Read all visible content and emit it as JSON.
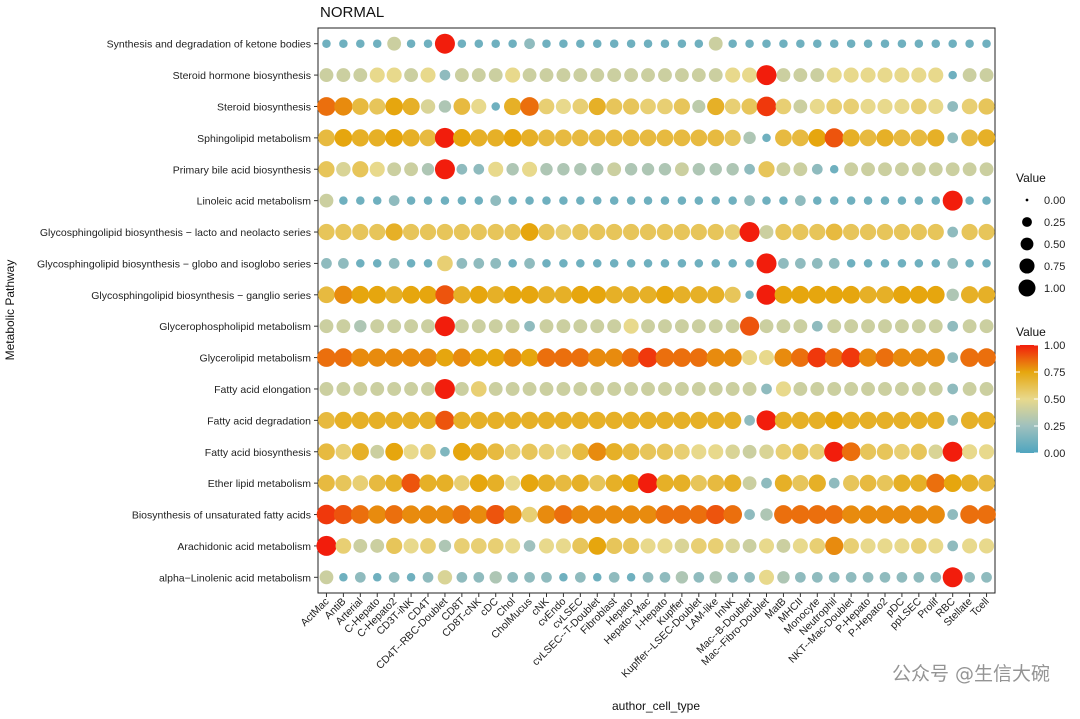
{
  "chart_data": {
    "type": "dotplot",
    "title": "NORMAL",
    "xlabel": "author_cell_type",
    "ylabel": "Metabolic Pathway",
    "categories": [
      "ActMac",
      "AntiB",
      "Arterial",
      "C-Hepato",
      "C-Hepato2",
      "CD3T-iNK",
      "CD4T",
      "CD4T--RBC-Doublet",
      "CD8T",
      "CD8T-cNK",
      "cDC",
      "Chol",
      "CholMucus",
      "cNK",
      "cvEndo",
      "cvLSEC",
      "cvLSEC--T-Doublet",
      "Fibroblast",
      "Hepato",
      "Hepato--Mac",
      "I-Hepato",
      "Kupffer",
      "Kupffer--LSEC-Doublet",
      "LAM-like",
      "InNK",
      "Mac--B-Doublet",
      "Mac--Fibro-Doublet",
      "MatB",
      "MHCII",
      "Monocyte",
      "Neutrophil",
      "NKT--Mac-Doublet",
      "P-Hepato",
      "P-Hepato2",
      "pDC",
      "ppLSEC",
      "Prolif",
      "RBC",
      "Stellate",
      "Tcell"
    ],
    "pathways": [
      "Synthesis and degradation of ketone bodies",
      "Steroid hormone biosynthesis",
      "Steroid biosynthesis",
      "Sphingolipid metabolism",
      "Primary bile acid biosynthesis",
      "Linoleic acid metabolism",
      "Glycosphingolipid biosynthesis − lacto and neolacto series",
      "Glycosphingolipid biosynthesis − globo and isoglobo series",
      "Glycosphingolipid biosynthesis − ganglio series",
      "Glycerophospholipid metabolism",
      "Glycerolipid metabolism",
      "Fatty acid elongation",
      "Fatty acid degradation",
      "Fatty acid biosynthesis",
      "Ether lipid metabolism",
      "Biosynthesis of unsaturated fatty acids",
      "Arachidonic acid metabolism",
      "alpha−Linolenic acid metabolism"
    ],
    "values": [
      [
        0.1,
        0.1,
        0.1,
        0.1,
        0.4,
        0.1,
        0.1,
        1.0,
        0.1,
        0.1,
        0.1,
        0.1,
        0.2,
        0.1,
        0.1,
        0.1,
        0.1,
        0.1,
        0.1,
        0.1,
        0.1,
        0.1,
        0.1,
        0.4,
        0.1,
        0.1,
        0.1,
        0.1,
        0.1,
        0.1,
        0.1,
        0.1,
        0.1,
        0.1,
        0.1,
        0.1,
        0.1,
        0.1,
        0.1,
        0.1
      ],
      [
        0.4,
        0.4,
        0.4,
        0.5,
        0.5,
        0.4,
        0.5,
        0.2,
        0.4,
        0.4,
        0.4,
        0.5,
        0.4,
        0.4,
        0.4,
        0.4,
        0.4,
        0.4,
        0.4,
        0.4,
        0.4,
        0.4,
        0.4,
        0.4,
        0.5,
        0.5,
        1.0,
        0.4,
        0.4,
        0.4,
        0.5,
        0.5,
        0.5,
        0.5,
        0.5,
        0.5,
        0.5,
        0.1,
        0.4,
        0.4
      ],
      [
        0.85,
        0.8,
        0.65,
        0.6,
        0.75,
        0.7,
        0.45,
        0.3,
        0.65,
        0.5,
        0.1,
        0.7,
        0.85,
        0.55,
        0.5,
        0.55,
        0.7,
        0.6,
        0.6,
        0.55,
        0.55,
        0.6,
        0.35,
        0.7,
        0.55,
        0.6,
        0.95,
        0.55,
        0.4,
        0.5,
        0.55,
        0.55,
        0.5,
        0.5,
        0.5,
        0.55,
        0.5,
        0.2,
        0.55,
        0.6
      ],
      [
        0.65,
        0.75,
        0.7,
        0.7,
        0.75,
        0.7,
        0.65,
        1.0,
        0.75,
        0.7,
        0.7,
        0.75,
        0.7,
        0.65,
        0.65,
        0.65,
        0.65,
        0.65,
        0.65,
        0.65,
        0.65,
        0.65,
        0.65,
        0.65,
        0.6,
        0.3,
        0.1,
        0.65,
        0.65,
        0.75,
        0.9,
        0.7,
        0.65,
        0.7,
        0.65,
        0.65,
        0.7,
        0.2,
        0.65,
        0.7
      ],
      [
        0.6,
        0.45,
        0.6,
        0.5,
        0.4,
        0.4,
        0.3,
        1.0,
        0.2,
        0.2,
        0.5,
        0.3,
        0.5,
        0.3,
        0.3,
        0.3,
        0.3,
        0.4,
        0.3,
        0.3,
        0.3,
        0.4,
        0.3,
        0.3,
        0.3,
        0.2,
        0.6,
        0.4,
        0.4,
        0.2,
        0.1,
        0.4,
        0.4,
        0.4,
        0.4,
        0.4,
        0.4,
        0.4,
        0.4,
        0.4
      ],
      [
        0.4,
        0.1,
        0.1,
        0.1,
        0.2,
        0.1,
        0.1,
        0.1,
        0.1,
        0.1,
        0.2,
        0.1,
        0.1,
        0.1,
        0.1,
        0.1,
        0.1,
        0.1,
        0.1,
        0.1,
        0.1,
        0.1,
        0.1,
        0.1,
        0.1,
        0.2,
        0.1,
        0.1,
        0.2,
        0.1,
        0.1,
        0.1,
        0.1,
        0.1,
        0.1,
        0.1,
        0.1,
        1.0,
        0.1,
        0.1
      ],
      [
        0.6,
        0.6,
        0.6,
        0.6,
        0.7,
        0.6,
        0.6,
        0.6,
        0.6,
        0.6,
        0.6,
        0.6,
        0.75,
        0.6,
        0.55,
        0.6,
        0.6,
        0.6,
        0.6,
        0.6,
        0.6,
        0.6,
        0.6,
        0.6,
        0.55,
        1.0,
        0.4,
        0.6,
        0.6,
        0.6,
        0.65,
        0.6,
        0.6,
        0.6,
        0.6,
        0.6,
        0.6,
        0.2,
        0.6,
        0.6
      ],
      [
        0.2,
        0.2,
        0.1,
        0.1,
        0.2,
        0.1,
        0.1,
        0.55,
        0.2,
        0.2,
        0.2,
        0.1,
        0.2,
        0.1,
        0.1,
        0.1,
        0.1,
        0.1,
        0.1,
        0.1,
        0.1,
        0.1,
        0.1,
        0.1,
        0.1,
        0.1,
        1.0,
        0.2,
        0.2,
        0.2,
        0.2,
        0.1,
        0.1,
        0.1,
        0.1,
        0.1,
        0.1,
        0.2,
        0.1,
        0.1
      ],
      [
        0.65,
        0.8,
        0.75,
        0.75,
        0.7,
        0.75,
        0.75,
        0.9,
        0.7,
        0.75,
        0.7,
        0.75,
        0.75,
        0.7,
        0.7,
        0.75,
        0.75,
        0.7,
        0.7,
        0.7,
        0.75,
        0.7,
        0.7,
        0.7,
        0.6,
        0.1,
        1.0,
        0.75,
        0.75,
        0.75,
        0.75,
        0.75,
        0.7,
        0.7,
        0.75,
        0.75,
        0.75,
        0.3,
        0.7,
        0.7
      ],
      [
        0.4,
        0.4,
        0.3,
        0.4,
        0.4,
        0.4,
        0.4,
        1.0,
        0.4,
        0.4,
        0.4,
        0.4,
        0.2,
        0.4,
        0.4,
        0.4,
        0.4,
        0.4,
        0.5,
        0.4,
        0.4,
        0.4,
        0.4,
        0.4,
        0.4,
        0.9,
        0.4,
        0.4,
        0.4,
        0.2,
        0.4,
        0.4,
        0.4,
        0.4,
        0.4,
        0.4,
        0.4,
        0.2,
        0.4,
        0.4
      ],
      [
        0.85,
        0.85,
        0.8,
        0.8,
        0.8,
        0.8,
        0.8,
        0.75,
        0.8,
        0.75,
        0.75,
        0.8,
        0.75,
        0.85,
        0.85,
        0.85,
        0.8,
        0.8,
        0.85,
        0.95,
        0.85,
        0.85,
        0.85,
        0.8,
        0.8,
        0.5,
        0.5,
        0.8,
        0.85,
        0.95,
        0.85,
        0.95,
        0.8,
        0.85,
        0.8,
        0.8,
        0.8,
        0.2,
        0.85,
        0.85
      ],
      [
        0.4,
        0.4,
        0.4,
        0.4,
        0.4,
        0.4,
        0.4,
        1.0,
        0.4,
        0.55,
        0.4,
        0.4,
        0.4,
        0.4,
        0.4,
        0.4,
        0.4,
        0.4,
        0.4,
        0.4,
        0.4,
        0.4,
        0.4,
        0.4,
        0.4,
        0.4,
        0.2,
        0.5,
        0.4,
        0.4,
        0.4,
        0.4,
        0.4,
        0.4,
        0.4,
        0.4,
        0.4,
        0.2,
        0.4,
        0.4
      ],
      [
        0.65,
        0.7,
        0.7,
        0.7,
        0.7,
        0.7,
        0.7,
        0.9,
        0.7,
        0.7,
        0.7,
        0.7,
        0.7,
        0.7,
        0.7,
        0.7,
        0.7,
        0.7,
        0.7,
        0.7,
        0.7,
        0.7,
        0.7,
        0.7,
        0.7,
        0.2,
        1.0,
        0.7,
        0.7,
        0.7,
        0.75,
        0.7,
        0.7,
        0.7,
        0.7,
        0.7,
        0.7,
        0.2,
        0.7,
        0.7
      ],
      [
        0.65,
        0.55,
        0.7,
        0.4,
        0.75,
        0.5,
        0.55,
        0.15,
        0.75,
        0.7,
        0.65,
        0.55,
        0.6,
        0.55,
        0.5,
        0.65,
        0.8,
        0.7,
        0.65,
        0.6,
        0.6,
        0.55,
        0.5,
        0.5,
        0.45,
        0.4,
        0.45,
        0.55,
        0.6,
        0.55,
        1.0,
        0.85,
        0.6,
        0.6,
        0.55,
        0.6,
        0.45,
        1.0,
        0.5,
        0.5
      ],
      [
        0.65,
        0.6,
        0.55,
        0.65,
        0.7,
        0.9,
        0.7,
        0.7,
        0.55,
        0.75,
        0.7,
        0.5,
        0.75,
        0.7,
        0.65,
        0.7,
        0.6,
        0.7,
        0.75,
        1.0,
        0.7,
        0.7,
        0.6,
        0.65,
        0.7,
        0.4,
        0.2,
        0.7,
        0.6,
        0.7,
        0.2,
        0.6,
        0.65,
        0.6,
        0.7,
        0.7,
        0.85,
        0.75,
        0.7,
        0.65
      ],
      [
        0.95,
        0.9,
        0.85,
        0.8,
        0.85,
        0.8,
        0.8,
        0.8,
        0.85,
        0.8,
        0.9,
        0.8,
        0.55,
        0.8,
        0.85,
        0.8,
        0.8,
        0.8,
        0.8,
        0.8,
        0.85,
        0.85,
        0.85,
        0.9,
        0.85,
        0.2,
        0.3,
        0.85,
        0.85,
        0.85,
        0.85,
        0.8,
        0.8,
        0.8,
        0.8,
        0.8,
        0.8,
        0.2,
        0.85,
        0.85
      ],
      [
        1.0,
        0.55,
        0.4,
        0.4,
        0.6,
        0.5,
        0.55,
        0.3,
        0.55,
        0.55,
        0.55,
        0.5,
        0.25,
        0.5,
        0.5,
        0.6,
        0.75,
        0.6,
        0.6,
        0.5,
        0.5,
        0.45,
        0.55,
        0.55,
        0.45,
        0.4,
        0.5,
        0.4,
        0.5,
        0.55,
        0.8,
        0.55,
        0.5,
        0.5,
        0.5,
        0.55,
        0.5,
        0.2,
        0.5,
        0.5
      ],
      [
        0.4,
        0.1,
        0.2,
        0.1,
        0.2,
        0.1,
        0.2,
        0.45,
        0.2,
        0.2,
        0.3,
        0.2,
        0.2,
        0.2,
        0.1,
        0.2,
        0.1,
        0.2,
        0.1,
        0.2,
        0.2,
        0.3,
        0.2,
        0.3,
        0.2,
        0.2,
        0.5,
        0.3,
        0.2,
        0.2,
        0.2,
        0.2,
        0.2,
        0.2,
        0.2,
        0.2,
        0.2,
        1.0,
        0.2,
        0.2
      ]
    ],
    "size_legend": {
      "title": "Value",
      "labels": [
        "0.00",
        "0.25",
        "0.50",
        "0.75",
        "1.00"
      ],
      "values": [
        0,
        0.25,
        0.5,
        0.75,
        1.0
      ]
    },
    "color_legend": {
      "title": "Value",
      "labels": [
        "1.00",
        "0.75",
        "0.50",
        "0.25",
        "0.00"
      ]
    },
    "colors": {
      "low": "#4FA5BF",
      "mid": "#E8D98C",
      "high_mid": "#E6A60E",
      "high": "#F21D0C"
    }
  },
  "watermark": "公众号 @生信大碗"
}
